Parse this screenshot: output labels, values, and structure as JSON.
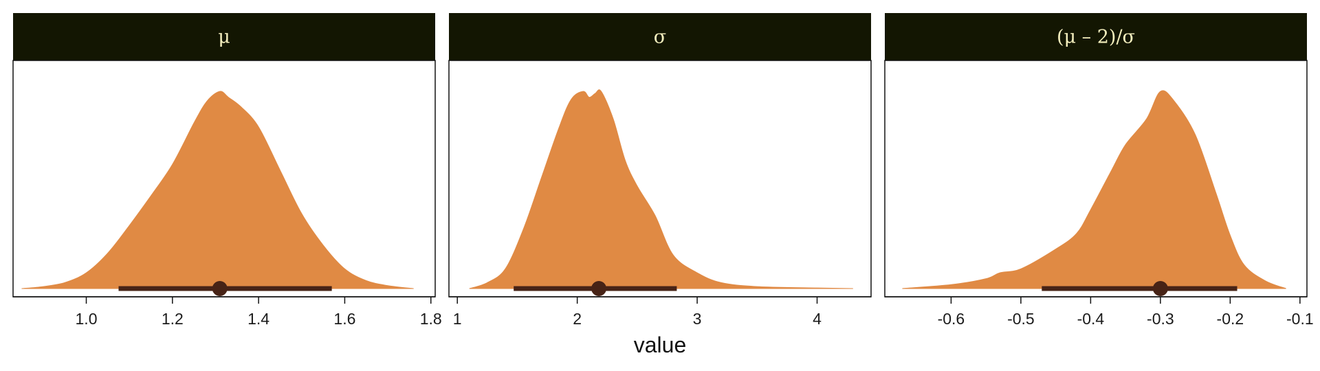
{
  "chart_data": {
    "type": "area",
    "xlabel": "value",
    "colors": {
      "density_fill": "#e08a44",
      "interval": "#472316",
      "strip_background": "#131602",
      "strip_text": "#f3eebd",
      "panel_border": "#111111"
    },
    "panels": [
      {
        "name": "mu",
        "label": "μ",
        "xlim": [
          0.83,
          1.81
        ],
        "ticks": [
          1.0,
          1.2,
          1.4,
          1.6,
          1.8
        ],
        "tick_labels": [
          "1.0",
          "1.2",
          "1.4",
          "1.6",
          "1.8"
        ],
        "density": {
          "x": [
            0.85,
            0.9,
            0.95,
            1.0,
            1.05,
            1.1,
            1.15,
            1.2,
            1.25,
            1.28,
            1.31,
            1.33,
            1.36,
            1.4,
            1.45,
            1.5,
            1.55,
            1.6,
            1.65,
            1.7,
            1.76
          ],
          "y": [
            0.0,
            0.01,
            0.03,
            0.08,
            0.18,
            0.32,
            0.47,
            0.63,
            0.84,
            0.95,
            1.0,
            0.97,
            0.92,
            0.82,
            0.6,
            0.38,
            0.22,
            0.1,
            0.04,
            0.015,
            0.0
          ]
        },
        "point_estimate": 1.31,
        "interval": [
          1.075,
          1.57
        ]
      },
      {
        "name": "sigma",
        "label": "σ",
        "xlim": [
          0.93,
          4.45
        ],
        "ticks": [
          1,
          2,
          3,
          4
        ],
        "tick_labels": [
          "1",
          "2",
          "3",
          "4"
        ],
        "density": {
          "x": [
            1.1,
            1.25,
            1.4,
            1.55,
            1.7,
            1.85,
            1.95,
            2.05,
            2.1,
            2.15,
            2.2,
            2.3,
            2.4,
            2.5,
            2.65,
            2.8,
            3.0,
            3.2,
            3.5,
            4.0,
            4.3
          ],
          "y": [
            0.0,
            0.03,
            0.1,
            0.3,
            0.56,
            0.82,
            0.96,
            1.0,
            0.97,
            0.99,
            1.0,
            0.86,
            0.65,
            0.52,
            0.37,
            0.17,
            0.08,
            0.03,
            0.01,
            0.003,
            0.0
          ]
        },
        "point_estimate": 2.18,
        "interval": [
          1.47,
          2.83
        ]
      },
      {
        "name": "mu-minus-2-over-sigma",
        "label": "(μ – 2)/σ",
        "xlim": [
          -0.695,
          -0.09
        ],
        "ticks": [
          -0.6,
          -0.5,
          -0.4,
          -0.3,
          -0.2,
          -0.1
        ],
        "tick_labels": [
          "-0.6",
          "-0.5",
          "-0.4",
          "-0.3",
          "-0.2",
          "-0.1"
        ],
        "density": {
          "x": [
            -0.67,
            -0.6,
            -0.55,
            -0.53,
            -0.5,
            -0.45,
            -0.42,
            -0.4,
            -0.37,
            -0.35,
            -0.32,
            -0.3,
            -0.28,
            -0.25,
            -0.22,
            -0.2,
            -0.18,
            -0.15,
            -0.12
          ],
          "y": [
            0.0,
            0.02,
            0.05,
            0.08,
            0.1,
            0.2,
            0.28,
            0.4,
            0.6,
            0.73,
            0.86,
            1.0,
            0.95,
            0.78,
            0.48,
            0.27,
            0.12,
            0.04,
            0.0
          ]
        },
        "point_estimate": -0.3,
        "interval": [
          -0.47,
          -0.19
        ]
      }
    ]
  }
}
